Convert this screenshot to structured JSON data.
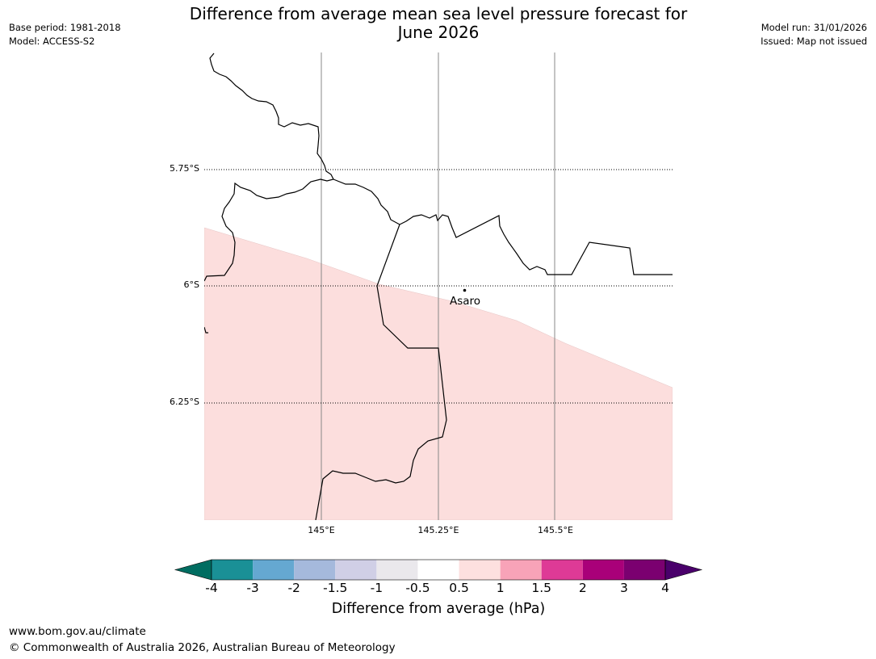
{
  "header": {
    "base_period": "Base period: 1981-2018",
    "model": "Model: ACCESS-S2",
    "title": "Difference from average mean sea level pressure forecast for",
    "title_line2": "June 2026",
    "model_run": "Model run: 31/01/2026",
    "issued": "Issued: Map not issued"
  },
  "map": {
    "lat_labels": [
      "5.75°S",
      "6°S",
      "6.25°S"
    ],
    "lon_labels": [
      "145°E",
      "145.25°E",
      "145.5°E"
    ],
    "place": {
      "name": "Asaro"
    },
    "shaded_category": "0.5 to 1",
    "shade_color": "#fcdedd"
  },
  "colorbar": {
    "ticks": [
      "-4",
      "-3",
      "-2",
      "-1.5",
      "-1",
      "-0.5",
      "0.5",
      "1",
      "1.5",
      "2",
      "3",
      "4"
    ],
    "under_color": "#006d61",
    "over_color": "#4a006b",
    "colors": [
      "#1a9096",
      "#65a8d1",
      "#a5b9dc",
      "#d0cfe6",
      "#eae8ec",
      "#ffffff",
      "#fde0df",
      "#f8a3b8",
      "#de3a96",
      "#a90079",
      "#7b0070"
    ],
    "label": "Difference from average (hPa)"
  },
  "footer": {
    "url": "www.bom.gov.au/climate",
    "copyright": "© Commonwealth of Australia 2026, Australian Bureau of Meteorology"
  }
}
